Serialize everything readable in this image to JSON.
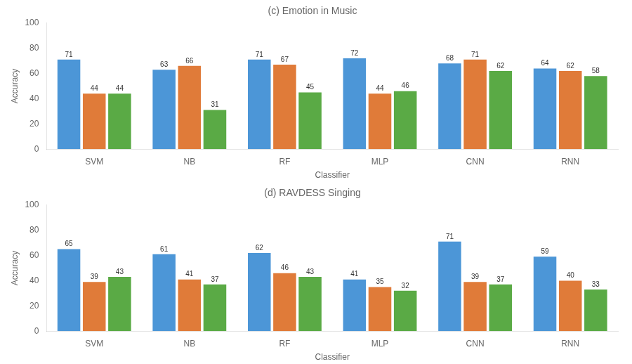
{
  "chart_data": [
    {
      "type": "bar",
      "title": "(c) Emotion in Music",
      "xlabel": "Classifier",
      "ylabel": "Accuracy",
      "categories": [
        "SVM",
        "NB",
        "RF",
        "MLP",
        "CNN",
        "RNN"
      ],
      "series": [
        {
          "color": "#4c96d7",
          "values": [
            71,
            63,
            71,
            72,
            68,
            64
          ]
        },
        {
          "color": "#e07b39",
          "values": [
            44,
            66,
            67,
            44,
            71,
            62
          ]
        },
        {
          "color": "#5aaa45",
          "values": [
            44,
            31,
            45,
            46,
            62,
            58
          ]
        }
      ],
      "ylim": [
        0,
        100
      ],
      "yticks": [
        0,
        20,
        40,
        60,
        80,
        100
      ],
      "grid": false,
      "data_labels": true
    },
    {
      "type": "bar",
      "title": "(d) RAVDESS Singing",
      "xlabel": "Classifier",
      "ylabel": "Accuracy",
      "categories": [
        "SVM",
        "NB",
        "RF",
        "MLP",
        "CNN",
        "RNN"
      ],
      "series": [
        {
          "color": "#4c96d7",
          "values": [
            65,
            61,
            62,
            41,
            71,
            59
          ]
        },
        {
          "color": "#e07b39",
          "values": [
            39,
            41,
            46,
            35,
            39,
            40
          ]
        },
        {
          "color": "#5aaa45",
          "values": [
            43,
            37,
            43,
            32,
            37,
            33
          ]
        }
      ],
      "ylim": [
        0,
        100
      ],
      "yticks": [
        0,
        20,
        40,
        60,
        80,
        100
      ],
      "grid": false,
      "data_labels": true
    }
  ]
}
